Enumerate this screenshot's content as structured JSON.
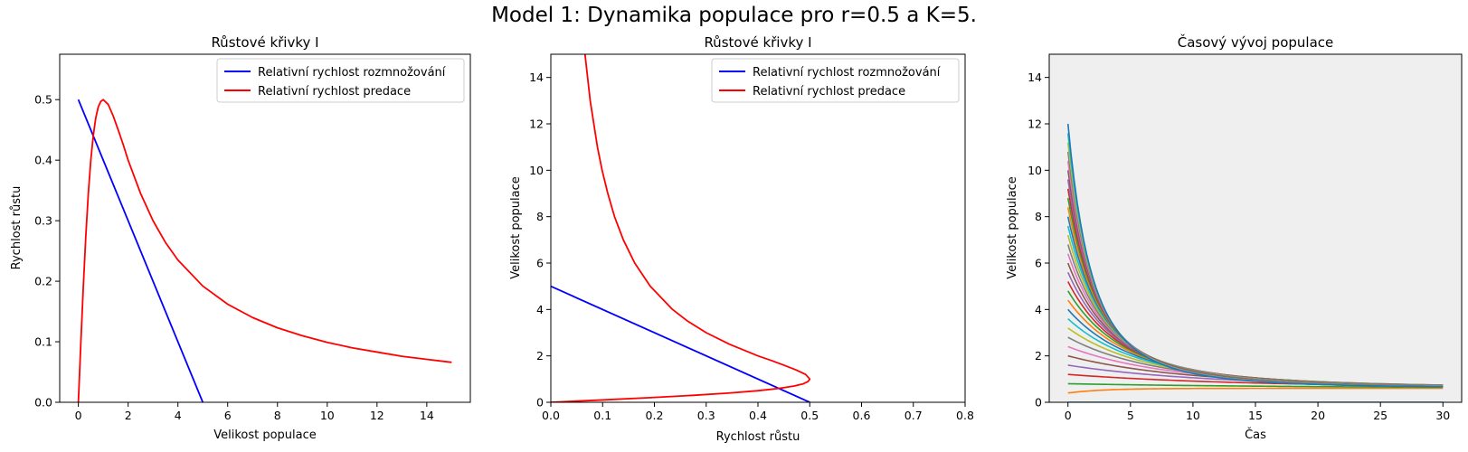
{
  "figure": {
    "suptitle": "Model 1: Dynamika populace pro r=0.5 a K=5."
  },
  "chart_data": [
    {
      "type": "line",
      "title": "Růstové křivky I",
      "xlabel": "Velikost populace",
      "ylabel": "Rychlost růstu",
      "xlim": [
        -0.75,
        15.75
      ],
      "ylim": [
        0,
        0.575
      ],
      "xticks": [
        "0",
        "2",
        "4",
        "6",
        "8",
        "10",
        "12",
        "14"
      ],
      "yticks": [
        "0.0",
        "0.1",
        "0.2",
        "0.3",
        "0.4",
        "0.5"
      ],
      "legend_position": "top-right",
      "grid": false,
      "series": [
        {
          "name": "Relativní rychlost rozmnožování",
          "color": "#0000ff",
          "x": [
            0,
            5
          ],
          "y": [
            0.5,
            0
          ]
        },
        {
          "name": "Relativní rychlost predace",
          "color": "#ff0000",
          "x": [
            0,
            0.1,
            0.2,
            0.3,
            0.4,
            0.5,
            0.6,
            0.7,
            0.8,
            0.9,
            1.0,
            1.2,
            1.4,
            1.6,
            1.8,
            2.0,
            2.5,
            3,
            3.5,
            4,
            5,
            6,
            7,
            8,
            9,
            10,
            11,
            12,
            13,
            14,
            15
          ],
          "y": [
            0,
            0.099,
            0.192,
            0.275,
            0.345,
            0.4,
            0.441,
            0.47,
            0.488,
            0.497,
            0.5,
            0.492,
            0.473,
            0.45,
            0.426,
            0.4,
            0.345,
            0.3,
            0.264,
            0.235,
            0.192,
            0.162,
            0.14,
            0.123,
            0.11,
            0.099,
            0.09,
            0.083,
            0.076,
            0.071,
            0.066
          ]
        }
      ]
    },
    {
      "type": "line",
      "title": "Růstové křivky I",
      "xlabel": "Rychlost růstu",
      "ylabel": "Velikost populace",
      "xlim": [
        0,
        0.8
      ],
      "ylim": [
        0,
        15
      ],
      "xticks": [
        "0.0",
        "0.1",
        "0.2",
        "0.3",
        "0.4",
        "0.5",
        "0.6",
        "0.7",
        "0.8"
      ],
      "yticks": [
        "0",
        "2",
        "4",
        "6",
        "8",
        "10",
        "12",
        "14"
      ],
      "legend_position": "top-right",
      "grid": false,
      "series": [
        {
          "name": "Relativní rychlost rozmnožování",
          "color": "#0000ff",
          "x": [
            0,
            0.5
          ],
          "y": [
            5,
            0
          ]
        },
        {
          "name": "Relativní rychlost predace",
          "color": "#ff0000",
          "x": [
            0,
            0.099,
            0.192,
            0.275,
            0.345,
            0.4,
            0.441,
            0.47,
            0.488,
            0.497,
            0.5,
            0.492,
            0.473,
            0.45,
            0.426,
            0.4,
            0.345,
            0.3,
            0.264,
            0.235,
            0.192,
            0.162,
            0.14,
            0.123,
            0.11,
            0.099,
            0.09,
            0.083,
            0.076,
            0.071,
            0.066
          ],
          "y": [
            0,
            0.1,
            0.2,
            0.3,
            0.4,
            0.5,
            0.6,
            0.7,
            0.8,
            0.9,
            1.0,
            1.2,
            1.4,
            1.6,
            1.8,
            2.0,
            2.5,
            3,
            3.5,
            4,
            5,
            6,
            7,
            8,
            9,
            10,
            11,
            12,
            13,
            14,
            15
          ]
        }
      ]
    },
    {
      "type": "line",
      "title": "Časový vývoj populace",
      "xlabel": "Čas",
      "ylabel": "Velikost populace",
      "xlim": [
        -1.5,
        31.5
      ],
      "ylim": [
        0,
        15
      ],
      "xticks": [
        "0",
        "5",
        "10",
        "15",
        "20",
        "25",
        "30"
      ],
      "yticks": [
        "0",
        "2",
        "4",
        "6",
        "8",
        "10",
        "12",
        "14"
      ],
      "background": "#efefef",
      "grid": false,
      "time_range": [
        0,
        30
      ],
      "equilibrium": 0.6,
      "extinct_value": 0,
      "initial_values": [
        0,
        0.4,
        0.8,
        1.2,
        1.6,
        2.0,
        2.4,
        2.8,
        3.2,
        3.6,
        4.0,
        4.4,
        4.8,
        5.2,
        5.6,
        6.0,
        6.4,
        6.8,
        7.2,
        7.6,
        8.0,
        8.4,
        8.8,
        9.2,
        9.6,
        10.0,
        10.4,
        10.8,
        11.2,
        11.6,
        12.0
      ],
      "colors": [
        "#1f77b4",
        "#ff7f0e",
        "#2ca02c",
        "#d62728",
        "#9467bd",
        "#8c564b",
        "#e377c2",
        "#7f7f7f",
        "#bcbd22",
        "#17becf"
      ]
    }
  ]
}
